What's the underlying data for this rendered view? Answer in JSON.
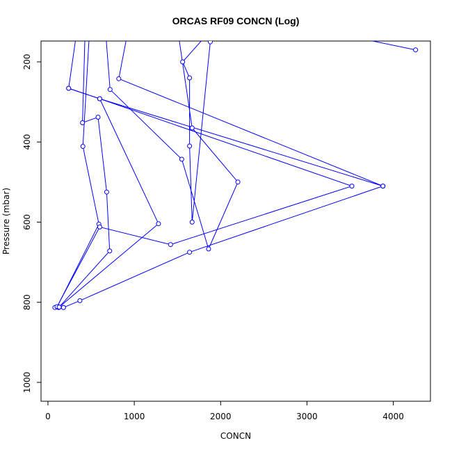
{
  "chart_data": {
    "type": "line",
    "title": "ORCAS RF09 CONCN (Log)",
    "xlabel": "CONCN",
    "ylabel": "Pressure (mbar)",
    "xlim": [
      -80,
      4430
    ],
    "ylim": [
      1047,
      148
    ],
    "y_reversed": true,
    "x_ticks": [
      0,
      1000,
      2000,
      3000,
      4000
    ],
    "y_ticks": [
      200,
      400,
      600,
      800,
      1000
    ],
    "series_color": "#0000ff",
    "grid": false,
    "series": [
      {
        "points": [
          [
            4258,
            170
          ],
          [
            3580,
            140
          ],
          [
            920,
            130
          ],
          [
            820,
            242
          ],
          [
            3880,
            510
          ],
          [
            600,
            292
          ],
          [
            240,
            266
          ],
          [
            330,
            130
          ],
          [
            480,
            130
          ],
          [
            405,
            411
          ],
          [
            590,
            605
          ],
          [
            105,
            812
          ],
          [
            80,
            813
          ],
          [
            125,
            813
          ],
          [
            180,
            813
          ],
          [
            130,
            812
          ],
          [
            715,
            672
          ],
          [
            680,
            525
          ],
          [
            580,
            338
          ],
          [
            400,
            352
          ],
          [
            430,
            130
          ],
          [
            670,
            130
          ],
          [
            720,
            269
          ],
          [
            1550,
            443
          ],
          [
            1860,
            667
          ],
          [
            2200,
            500
          ],
          [
            1670,
            365
          ],
          [
            1510,
            130
          ],
          [
            1850,
            130
          ],
          [
            1560,
            200
          ],
          [
            1640,
            240
          ],
          [
            1640,
            410
          ],
          [
            1670,
            600
          ],
          [
            1880,
            150
          ]
        ]
      },
      {
        "points": [
          [
            105,
            811
          ],
          [
            600,
            612
          ],
          [
            1420,
            656
          ],
          [
            3520,
            510
          ],
          [
            600,
            292
          ],
          [
            240,
            266
          ]
        ]
      },
      {
        "points": [
          [
            130,
            812
          ],
          [
            1280,
            604
          ],
          [
            600,
            292
          ]
        ]
      },
      {
        "points": [
          [
            180,
            813
          ],
          [
            370,
            796
          ],
          [
            1640,
            675
          ],
          [
            3880,
            510
          ]
        ]
      }
    ]
  }
}
